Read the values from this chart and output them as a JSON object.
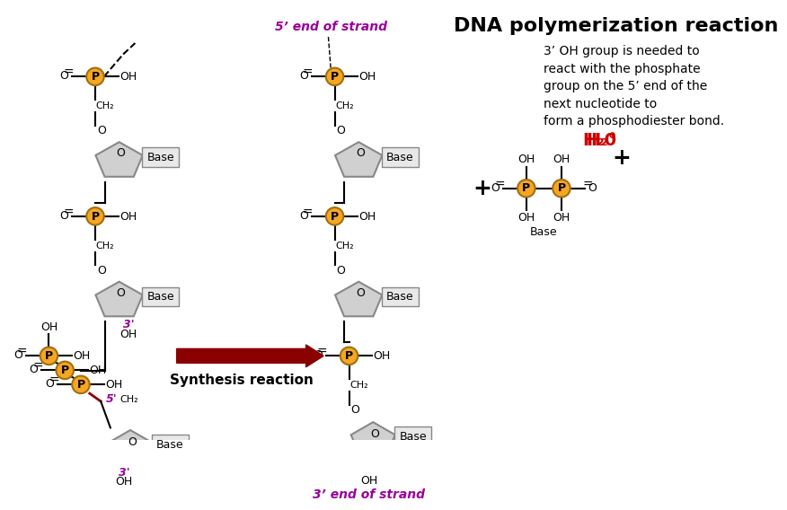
{
  "title": "DNA polymerization reaction",
  "title_fontsize": 16,
  "bg_color": "#ffffff",
  "description": [
    "3’ OH group is needed to",
    "react with the phosphate",
    "group on the 5’ end of the",
    "next nucleotide to",
    "form a phosphodiester bond."
  ],
  "phosphate_color": "#F5A623",
  "phosphate_outline": "#A07010",
  "ring_fill": "#D0D0D0",
  "ring_edge": "#888888",
  "base_fill": "#E8E8E8",
  "base_edge": "#888888",
  "arrow_color": "#8B0000",
  "prime5_color": "#990099",
  "prime3_color": "#990099",
  "h2o_color": "#CC0000",
  "text_color": "#000000",
  "synthesis_label": "Synthesis reaction",
  "strand_5_label": "5’ end of strand",
  "strand_3_label": "3’ end of strand"
}
